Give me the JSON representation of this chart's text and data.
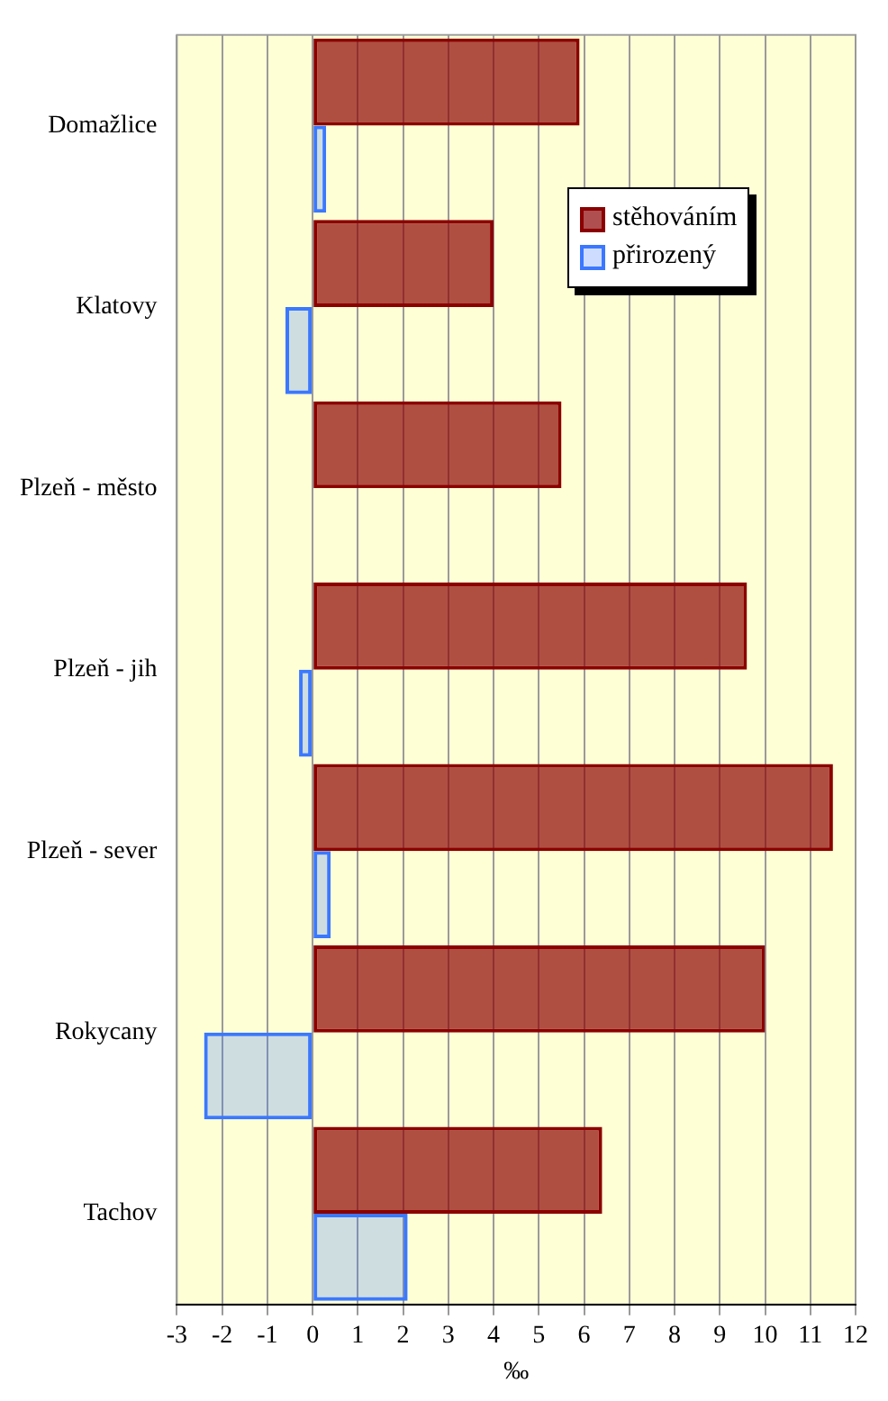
{
  "chart_data": {
    "type": "bar",
    "orientation": "horizontal",
    "xlabel": "‰",
    "categories": [
      "Domažlice",
      "Klatovy",
      "Plzeň - město",
      "Plzeň - jih",
      "Plzeň - sever",
      "Rokycany",
      "Tachov"
    ],
    "series": [
      {
        "name": "stěhováním",
        "color": "#8b0000",
        "values": [
          5.9,
          4.0,
          5.5,
          9.6,
          11.5,
          10.0,
          6.4
        ]
      },
      {
        "name": "přirozený",
        "color": "#3b78ff",
        "values": [
          0.3,
          -0.6,
          0,
          -0.3,
          0.4,
          -2.4,
          2.1
        ]
      }
    ],
    "xlim": [
      -3,
      12
    ],
    "xticks": [
      -3,
      -2,
      -1,
      0,
      1,
      2,
      3,
      4,
      5,
      6,
      7,
      8,
      9,
      10,
      11,
      12
    ],
    "grid": "x",
    "legend": "top right"
  }
}
